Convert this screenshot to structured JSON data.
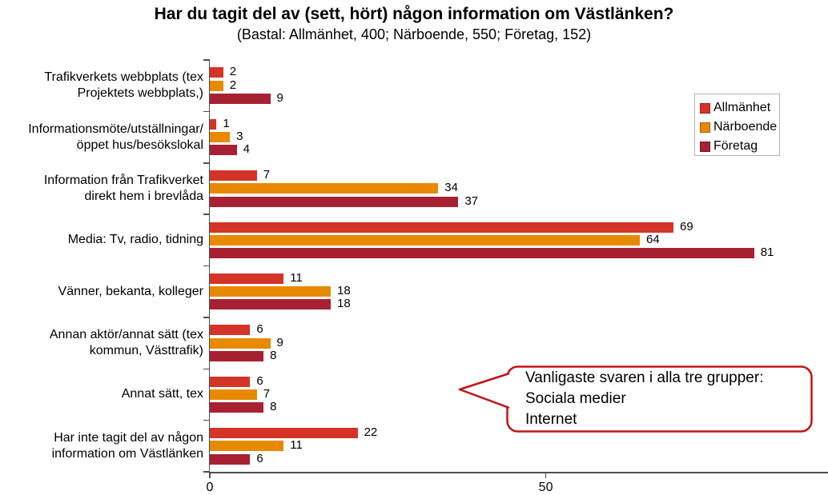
{
  "chart_data": {
    "type": "bar",
    "orientation": "horizontal",
    "title": "Har du tagit del av (sett, hört) någon information om Västlänken?",
    "subtitle": "(Bastal: Allmänhet, 400; Närboende, 550; Företag, 152)",
    "categories": [
      "Trafikverkets webbplats (tex\nProjektets webbplats,)",
      "Informationsmöte/utställningar/\nöppet hus/besökslokal",
      "Information från Trafikverket\ndirekt hem i brevlåda",
      "Media: Tv, radio, tidning",
      "Vänner, bekanta, kolleger",
      "Annan aktör/annat sätt (tex\nkommun, Västtrafik)",
      "Annat sätt, tex",
      "Har inte tagit del av någon\ninformation om Västlänken"
    ],
    "series": [
      {
        "name": "Allmänhet",
        "color": "#d43428",
        "edge": "#9b1f16",
        "values": [
          2,
          1,
          7,
          69,
          11,
          6,
          6,
          22
        ]
      },
      {
        "name": "Närboende",
        "color": "#e88a00",
        "edge": "#a55f02",
        "values": [
          2,
          3,
          34,
          64,
          18,
          9,
          7,
          11
        ]
      },
      {
        "name": "Företag",
        "color": "#a72133",
        "edge": "#701423",
        "values": [
          9,
          4,
          37,
          81,
          18,
          8,
          8,
          6
        ]
      }
    ],
    "xlim": [
      0,
      92
    ],
    "x_ticks": [
      {
        "value": 0,
        "label": "0"
      },
      {
        "value": 50,
        "label": "50"
      }
    ],
    "grid": false,
    "legend_position": "upper-right",
    "value_labels": true
  },
  "callout": {
    "text": "Vanligaste svaren i alla tre grupper:\nSociala medier\nInternet",
    "border_color": "#c41414"
  },
  "axis_color": "#4d4d4d"
}
